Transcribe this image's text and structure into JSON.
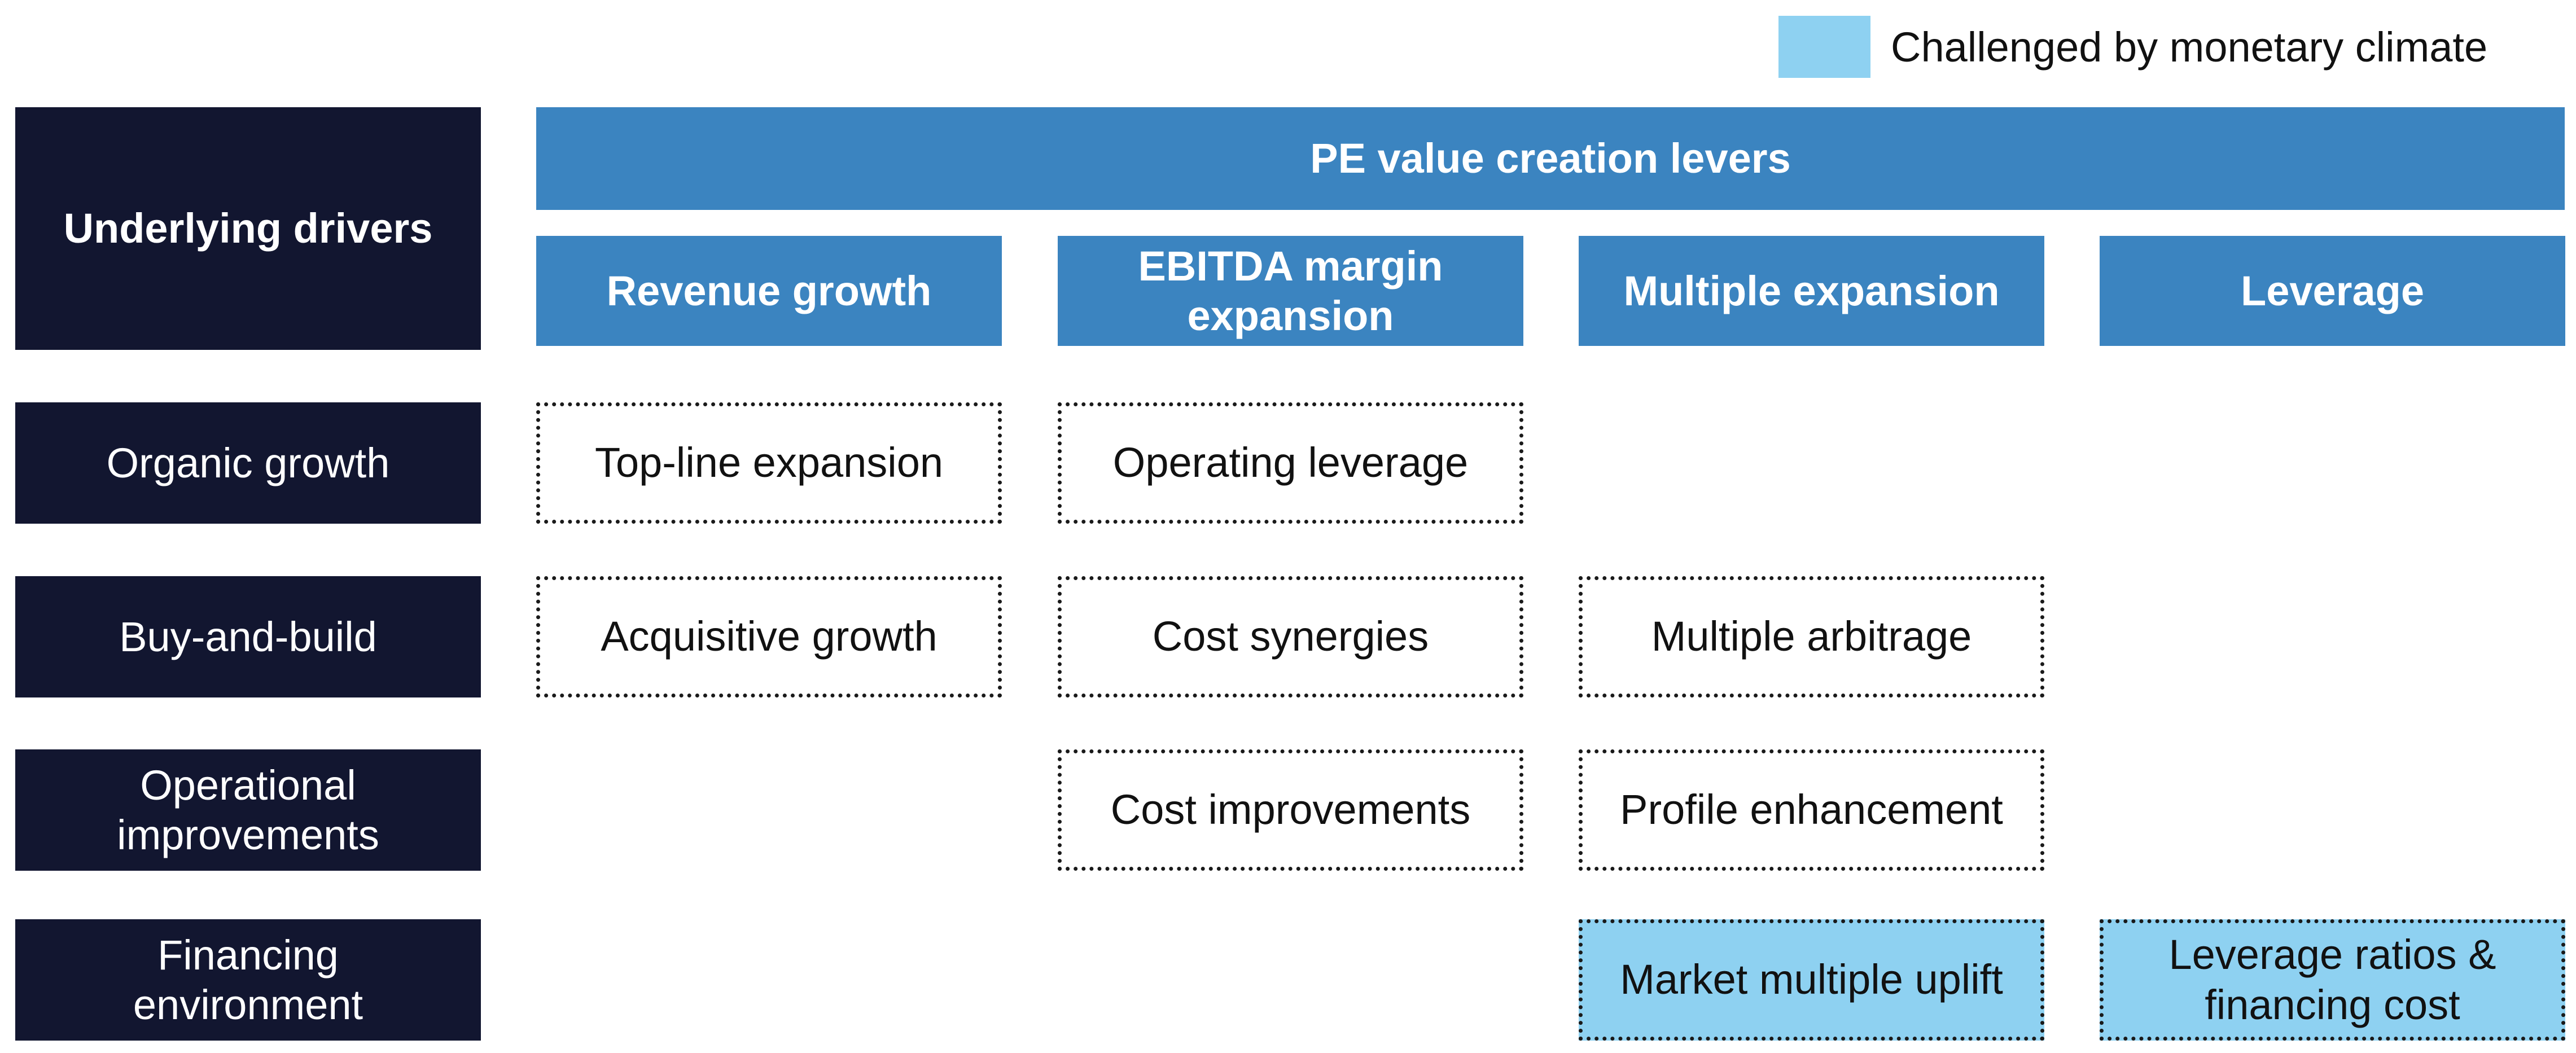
{
  "legend": {
    "label": "Challenged by monetary climate",
    "color": "#8ed1f1"
  },
  "header": {
    "drivers_title": "Underlying drivers",
    "levers_title": "PE value creation levers"
  },
  "levers": [
    "Revenue growth",
    "EBITDA margin\nexpansion",
    "Multiple expansion",
    "Leverage"
  ],
  "drivers": [
    "Organic growth",
    "Buy-and-build",
    "Operational\nimprovements",
    "Financing\nenvironment"
  ],
  "cells": {
    "organic_growth": {
      "revenue_growth": "Top-line expansion",
      "ebitda_margin": "Operating leverage"
    },
    "buy_and_build": {
      "revenue_growth": "Acquisitive growth",
      "ebitda_margin": "Cost synergies",
      "multiple_expansion": "Multiple arbitrage"
    },
    "operational_improvements": {
      "ebitda_margin": "Cost improvements",
      "multiple_expansion": "Profile enhancement"
    },
    "financing_environment": {
      "multiple_expansion": "Market multiple uplift",
      "leverage": "Leverage ratios &\nfinancing cost"
    }
  },
  "challenged_cells": [
    "Market multiple uplift",
    "Leverage ratios & financing cost"
  ],
  "colors": {
    "dark_navy": "#121630",
    "lever_blue": "#3b84c0",
    "highlight_blue": "#8ed1f1"
  }
}
